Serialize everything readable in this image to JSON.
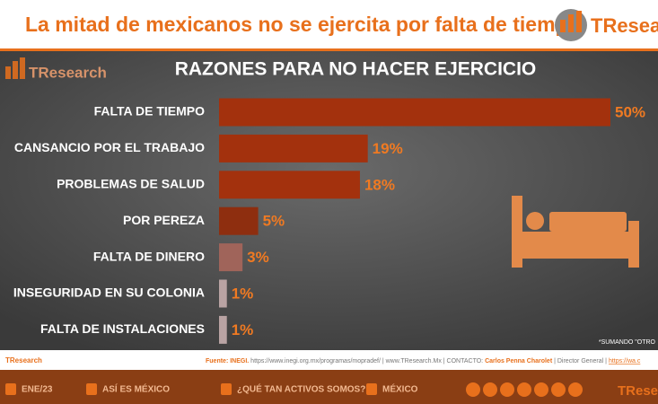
{
  "chart_data": {
    "type": "bar",
    "orientation": "horizontal",
    "title": "RAZONES PARA NO HACER EJERCICIO",
    "categories": [
      "FALTA DE TIEMPO",
      "CANSANCIO POR EL TRABAJO",
      "PROBLEMAS DE SALUD",
      "POR PEREZA",
      "FALTA DE DINERO",
      "INSEGURIDAD EN SU COLONIA",
      "FALTA DE INSTALACIONES"
    ],
    "values": [
      50,
      19,
      18,
      5,
      3,
      1,
      1
    ],
    "value_labels": [
      "50%",
      "19%",
      "18%",
      "5%",
      "3%",
      "1%",
      "1%"
    ],
    "colors": [
      "#a3310d",
      "#a3310d",
      "#a3310d",
      "#8e2e0f",
      "#a0645a",
      "#b9a3a3",
      "#b9a3a3"
    ],
    "note": "*SUMANDO \"OTRO"
  },
  "page": {
    "headline": "La mitad de mexicanos no se ejercita por falta de tiempo.",
    "logo": "TResearch",
    "footer_source": {
      "lead": "Fuente: INEGI.",
      "text": " https://www.inegi.org.mx/programas/mopradef/ | www.TResearch.Mx | CONTACTO: ",
      "name": "Carlos Penna Charolet",
      "role": " | Director General | ",
      "link": "https://wa.c"
    },
    "footer_items": [
      "ENE/23",
      "ASÍ ES MÉXICO",
      "¿QUÉ TAN ACTIVOS SOMOS?",
      "MÉXICO"
    ]
  }
}
